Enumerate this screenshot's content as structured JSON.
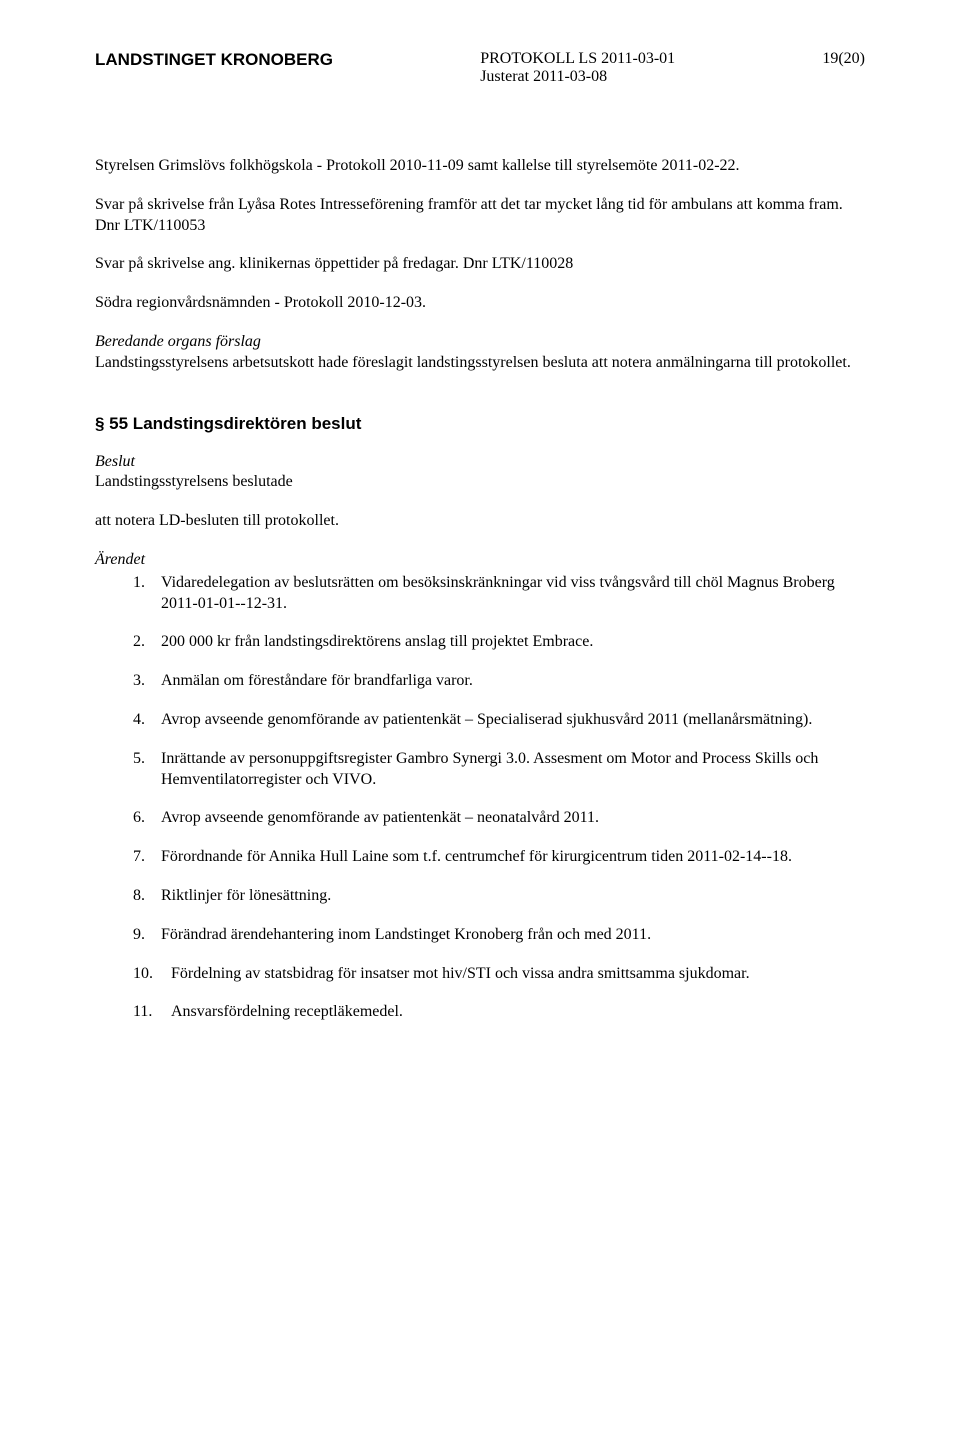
{
  "header": {
    "org": "LANDSTINGET KRONOBERG",
    "protocol_line1": "PROTOKOLL LS 2011-03-01",
    "protocol_line2": "Justerat 2011-03-08",
    "page": "19(20)"
  },
  "paragraphs": {
    "p1": "Styrelsen Grimslövs folkhögskola - Protokoll 2010-11-09 samt kallelse till styrelsemöte 2011-02-22.",
    "p2": "Svar på skrivelse från Lyåsa Rotes Intresseförening framför att det tar mycket lång tid för ambulans att komma fram. Dnr LTK/110053",
    "p3": "Svar på skrivelse ang. klinikernas öppettider på fredagar. Dnr LTK/110028",
    "p4": "Södra regionvårdsnämnden - Protokoll 2010-12-03.",
    "beredande_heading": "Beredande organs förslag",
    "beredande_text": "Landstingsstyrelsens arbetsutskott hade föreslagit landstingsstyrelsen besluta att notera anmälningarna till protokollet."
  },
  "section55": {
    "heading": "§ 55 Landstingsdirektören beslut",
    "beslut_heading": "Beslut",
    "beslut_text": "Landstingsstyrelsens beslutade",
    "att_text": "att notera LD-besluten till protokollet.",
    "arendet_heading": "Ärendet",
    "items": [
      {
        "num": "1.",
        "text": "Vidaredelegation av beslutsrätten om besöksinskränkningar vid viss tvångsvård till chöl Magnus Broberg 2011-01-01--12-31."
      },
      {
        "num": "2.",
        "text": "200 000 kr från landstingsdirektörens anslag till projektet Embrace."
      },
      {
        "num": "3.",
        "text": "Anmälan om föreståndare för brandfarliga varor."
      },
      {
        "num": "4.",
        "text": "Avrop avseende genomförande av patientenkät – Specialiserad sjukhusvård 2011 (mellanårsmätning)."
      },
      {
        "num": "5.",
        "text": "Inrättande av personuppgiftsregister Gambro Synergi 3.0. Assesment om Motor and Process Skills och Hemventilatorregister och VIVO."
      },
      {
        "num": "6.",
        "text": "Avrop avseende genomförande av patientenkät – neonatalvård 2011."
      },
      {
        "num": "7.",
        "text": "Förordnande för Annika Hull Laine som t.f. centrumchef för kirurgicentrum tiden 2011-02-14--18."
      },
      {
        "num": "8.",
        "text": "Riktlinjer för lönesättning."
      },
      {
        "num": "9.",
        "text": "Förändrad ärendehantering inom Landstinget Kronoberg från och med 2011."
      },
      {
        "num": "10.",
        "text": "Fördelning av statsbidrag för insatser mot hiv/STI och vissa andra smittsamma sjukdomar."
      },
      {
        "num": "11.",
        "text": "Ansvarsfördelning receptläkemedel."
      }
    ]
  }
}
